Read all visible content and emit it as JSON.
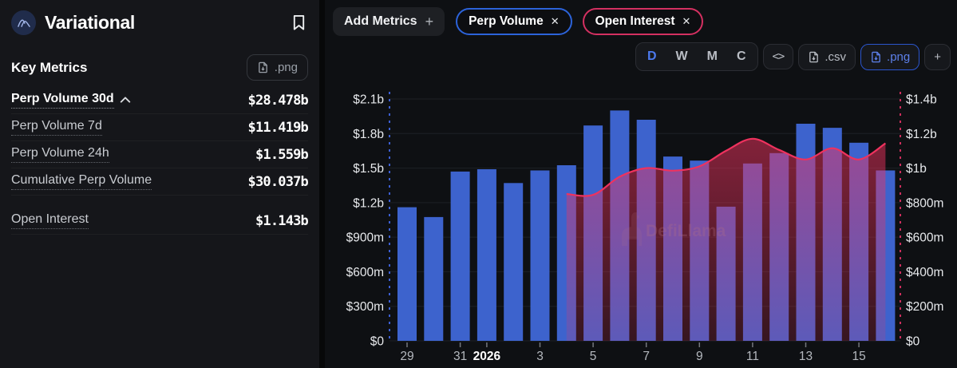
{
  "sidebar": {
    "title": "Variational",
    "section_title": "Key Metrics",
    "download_label": ".png",
    "metrics": [
      {
        "label": "Perp Volume 30d",
        "value": "$28.478b",
        "expanded": true,
        "emphasis": true
      },
      {
        "label": "Perp Volume 7d",
        "value": "$11.419b"
      },
      {
        "label": "Perp Volume 24h",
        "value": "$1.559b"
      },
      {
        "label": "Cumulative Perp Volume",
        "value": "$30.037b"
      },
      {
        "label": "Open Interest",
        "value": "$1.143b",
        "group_gap": true
      }
    ]
  },
  "toolbar": {
    "add_metrics_label": "Add Metrics",
    "add_metrics_plus": "+",
    "metric_pills": [
      {
        "label": "Perp Volume",
        "accent": "#2c63da"
      },
      {
        "label": "Open Interest",
        "accent": "#d43061"
      }
    ],
    "remove_icon": "✕",
    "intervals": [
      "D",
      "W",
      "M",
      "C"
    ],
    "active_interval": "D",
    "embed_label": "<>",
    "csv_label": ".csv",
    "png_label": ".png",
    "more_label": "+"
  },
  "chart_data": {
    "type": "bar",
    "title": "",
    "x": [
      "Dec 29",
      "Dec 30",
      "Dec 31",
      "Jan 1",
      "Jan 2",
      "Jan 3",
      "Jan 4",
      "Jan 5",
      "Jan 6",
      "Jan 7",
      "Jan 8",
      "Jan 9",
      "Jan 10",
      "Jan 11",
      "Jan 12",
      "Jan 13",
      "Jan 14",
      "Jan 15",
      "Jan 16"
    ],
    "x_tick_labels": [
      {
        "index": 0,
        "label": "29"
      },
      {
        "index": 2,
        "label": "31"
      },
      {
        "index": 3,
        "label": "2026",
        "bold": true
      },
      {
        "index": 5,
        "label": "3"
      },
      {
        "index": 7,
        "label": "5"
      },
      {
        "index": 9,
        "label": "7"
      },
      {
        "index": 11,
        "label": "9"
      },
      {
        "index": 13,
        "label": "11"
      },
      {
        "index": 15,
        "label": "13"
      },
      {
        "index": 17,
        "label": "15"
      }
    ],
    "series": [
      {
        "name": "Perp Volume",
        "type": "bar",
        "axis": "left",
        "color": "#3d63cd",
        "values_musd": [
          1160,
          1075,
          1470,
          1490,
          1370,
          1480,
          1525,
          1870,
          2000,
          1920,
          1600,
          1565,
          1165,
          1540,
          1630,
          1885,
          1850,
          1720,
          1480
        ]
      },
      {
        "name": "Open Interest",
        "type": "area",
        "axis": "right",
        "color": "#ef325e",
        "values_musd": [
          null,
          null,
          null,
          null,
          null,
          null,
          850,
          845,
          950,
          1000,
          985,
          1010,
          1100,
          1170,
          1105,
          1050,
          1115,
          1050,
          1143
        ]
      }
    ],
    "left_axis": {
      "max_musd": 2100,
      "step_musd": 300,
      "tick_labels": [
        "$0",
        "$300m",
        "$600m",
        "$900m",
        "$1.2b",
        "$1.5b",
        "$1.8b",
        "$2.1b"
      ]
    },
    "right_axis": {
      "max_musd": 1400,
      "step_musd": 200,
      "tick_labels": [
        "$0",
        "$200m",
        "$400m",
        "$600m",
        "$800m",
        "$1b",
        "$1.2b",
        "$1.4b"
      ]
    },
    "grid": true,
    "legend": false,
    "watermark": "DefiLlama"
  }
}
